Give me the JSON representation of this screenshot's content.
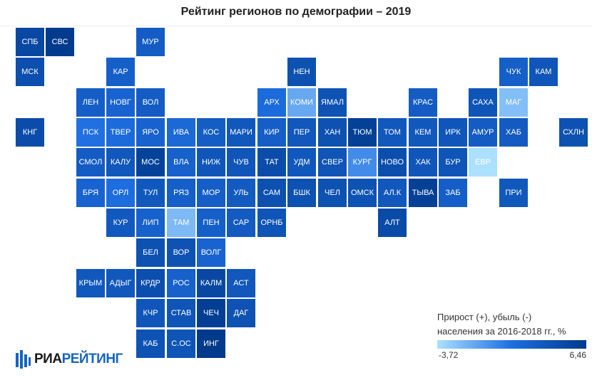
{
  "chart_data": {
    "type": "heatmap",
    "title": "Рейтинг регионов по демографии – 2019",
    "legend": {
      "title_line1": "Прирост (+), убыль (-)",
      "title_line2": "населения за 2016-2018 гг., %",
      "min_label": "-3,72",
      "max_label": "6,46",
      "min": -3.72,
      "max": 6.46,
      "color_low": "#ace0ff",
      "color_high": "#003a8c",
      "placement": "bottom-right"
    },
    "cells": [
      {
        "label": "СПБ",
        "row": 0,
        "col": 0,
        "value": 5.0
      },
      {
        "label": "СВС",
        "row": 0,
        "col": 1,
        "value": 6.3
      },
      {
        "label": "МУР",
        "row": 0,
        "col": 4,
        "value": 2.8
      },
      {
        "label": "МСК",
        "row": 1,
        "col": 0,
        "value": 4.2
      },
      {
        "label": "КАР",
        "row": 1,
        "col": 3,
        "value": 2.5
      },
      {
        "label": "НЕН",
        "row": 1,
        "col": 9,
        "value": 4.0
      },
      {
        "label": "ЧУК",
        "row": 1,
        "col": 16,
        "value": 2.5
      },
      {
        "label": "КАМ",
        "row": 1,
        "col": 17,
        "value": 3.5
      },
      {
        "label": "ЛЕН",
        "row": 2,
        "col": 2,
        "value": 2.6
      },
      {
        "label": "НОВГ",
        "row": 2,
        "col": 3,
        "value": 2.0
      },
      {
        "label": "ВОЛ",
        "row": 2,
        "col": 4,
        "value": 2.8
      },
      {
        "label": "АРХ",
        "row": 2,
        "col": 8,
        "value": 1.2
      },
      {
        "label": "КОМИ",
        "row": 2,
        "col": 9,
        "value": -1.5
      },
      {
        "label": "ЯМАЛ",
        "row": 2,
        "col": 10,
        "value": 3.8
      },
      {
        "label": "КРАС",
        "row": 2,
        "col": 13,
        "value": 2.8
      },
      {
        "label": "САХА",
        "row": 2,
        "col": 15,
        "value": 3.6
      },
      {
        "label": "МАГ",
        "row": 2,
        "col": 16,
        "value": -2.4
      },
      {
        "label": "КНГ",
        "row": 3,
        "col": 0,
        "value": 4.5
      },
      {
        "label": "ПСК",
        "row": 3,
        "col": 2,
        "value": 0.8
      },
      {
        "label": "ТВЕР",
        "row": 3,
        "col": 3,
        "value": 1.2
      },
      {
        "label": "ЯРО",
        "row": 3,
        "col": 4,
        "value": 2.1
      },
      {
        "label": "ИВА",
        "row": 3,
        "col": 5,
        "value": 1.5
      },
      {
        "label": "КОС",
        "row": 3,
        "col": 6,
        "value": 2.7
      },
      {
        "label": "МАРИ",
        "row": 3,
        "col": 7,
        "value": 3.2
      },
      {
        "label": "КИР",
        "row": 3,
        "col": 8,
        "value": 2.6
      },
      {
        "label": "ПЕР",
        "row": 3,
        "col": 9,
        "value": 3.3
      },
      {
        "label": "ХАН",
        "row": 3,
        "col": 10,
        "value": 4.0
      },
      {
        "label": "ТЮМ",
        "row": 3,
        "col": 11,
        "value": 5.8
      },
      {
        "label": "ТОМ",
        "row": 3,
        "col": 12,
        "value": 3.3
      },
      {
        "label": "КЕМ",
        "row": 3,
        "col": 13,
        "value": 3.2
      },
      {
        "label": "ИРК",
        "row": 3,
        "col": 14,
        "value": 3.4
      },
      {
        "label": "АМУР",
        "row": 3,
        "col": 15,
        "value": 2.8
      },
      {
        "label": "ХАБ",
        "row": 3,
        "col": 16,
        "value": 3.0
      },
      {
        "label": "СХЛН",
        "row": 3,
        "col": 18,
        "value": 4.0
      },
      {
        "label": "СМОЛ",
        "row": 4,
        "col": 2,
        "value": 2.8
      },
      {
        "label": "КАЛУ",
        "row": 4,
        "col": 3,
        "value": 3.3
      },
      {
        "label": "МОС",
        "row": 4,
        "col": 4,
        "value": 5.5
      },
      {
        "label": "ВЛА",
        "row": 4,
        "col": 5,
        "value": 2.3
      },
      {
        "label": "НИЖ",
        "row": 4,
        "col": 6,
        "value": 3.4
      },
      {
        "label": "ЧУВ",
        "row": 4,
        "col": 7,
        "value": 3.5
      },
      {
        "label": "ТАТ",
        "row": 4,
        "col": 8,
        "value": 4.5
      },
      {
        "label": "УДМ",
        "row": 4,
        "col": 9,
        "value": 3.2
      },
      {
        "label": "СВЕР",
        "row": 4,
        "col": 10,
        "value": 3.7
      },
      {
        "label": "КУРГ",
        "row": 4,
        "col": 11,
        "value": -0.3
      },
      {
        "label": "НОВО",
        "row": 4,
        "col": 12,
        "value": 4.3
      },
      {
        "label": "ХАК",
        "row": 4,
        "col": 13,
        "value": 3.4
      },
      {
        "label": "БУР",
        "row": 4,
        "col": 14,
        "value": 3.6
      },
      {
        "label": "ЕВР",
        "row": 4,
        "col": 15,
        "value": -3.72
      },
      {
        "label": "БРЯ",
        "row": 5,
        "col": 2,
        "value": 2.0
      },
      {
        "label": "ОРЛ",
        "row": 5,
        "col": 3,
        "value": 1.0
      },
      {
        "label": "ТУЛ",
        "row": 5,
        "col": 4,
        "value": 3.2
      },
      {
        "label": "РЯЗ",
        "row": 5,
        "col": 5,
        "value": 2.5
      },
      {
        "label": "МОР",
        "row": 5,
        "col": 6,
        "value": 2.6
      },
      {
        "label": "УЛЬ",
        "row": 5,
        "col": 7,
        "value": 3.0
      },
      {
        "label": "САМ",
        "row": 5,
        "col": 8,
        "value": 4.1
      },
      {
        "label": "БШК",
        "row": 5,
        "col": 9,
        "value": 4.0
      },
      {
        "label": "ЧЕЛ",
        "row": 5,
        "col": 10,
        "value": 4.0
      },
      {
        "label": "ОМСК",
        "row": 5,
        "col": 11,
        "value": 3.8
      },
      {
        "label": "АЛ.К",
        "row": 5,
        "col": 12,
        "value": 3.3
      },
      {
        "label": "ТЫВА",
        "row": 5,
        "col": 13,
        "value": 5.8
      },
      {
        "label": "ЗАБ",
        "row": 5,
        "col": 14,
        "value": 2.6
      },
      {
        "label": "ПРИ",
        "row": 5,
        "col": 16,
        "value": 3.2
      },
      {
        "label": "КУР",
        "row": 6,
        "col": 3,
        "value": 3.1
      },
      {
        "label": "ЛИП",
        "row": 6,
        "col": 4,
        "value": 2.3
      },
      {
        "label": "ТАМ",
        "row": 6,
        "col": 5,
        "value": -2.2
      },
      {
        "label": "ПЕН",
        "row": 6,
        "col": 6,
        "value": 2.5
      },
      {
        "label": "САР",
        "row": 6,
        "col": 7,
        "value": 3.0
      },
      {
        "label": "ОРНБ",
        "row": 6,
        "col": 8,
        "value": 3.6
      },
      {
        "label": "АЛТ",
        "row": 6,
        "col": 12,
        "value": 4.6
      },
      {
        "label": "БЕЛ",
        "row": 7,
        "col": 4,
        "value": 4.0
      },
      {
        "label": "ВОР",
        "row": 7,
        "col": 5,
        "value": 3.9
      },
      {
        "label": "ВОЛГ",
        "row": 7,
        "col": 6,
        "value": 2.0
      },
      {
        "label": "КРЫМ",
        "row": 8,
        "col": 2,
        "value": 3.2
      },
      {
        "label": "АДЫГ",
        "row": 8,
        "col": 3,
        "value": 3.3
      },
      {
        "label": "КРДР",
        "row": 8,
        "col": 4,
        "value": 4.3
      },
      {
        "label": "РОС",
        "row": 8,
        "col": 5,
        "value": 2.3
      },
      {
        "label": "КАЛМ",
        "row": 8,
        "col": 6,
        "value": 5.0
      },
      {
        "label": "АСТ",
        "row": 8,
        "col": 7,
        "value": 3.3
      },
      {
        "label": "КЧР",
        "row": 9,
        "col": 4,
        "value": 3.4
      },
      {
        "label": "СТАВ",
        "row": 9,
        "col": 5,
        "value": 3.6
      },
      {
        "label": "ЧЕЧ",
        "row": 9,
        "col": 6,
        "value": 6.0
      },
      {
        "label": "ДАГ",
        "row": 9,
        "col": 7,
        "value": 3.9
      },
      {
        "label": "КАБ",
        "row": 10,
        "col": 4,
        "value": 3.8
      },
      {
        "label": "С.ОС",
        "row": 10,
        "col": 5,
        "value": 3.6
      },
      {
        "label": "ИНГ",
        "row": 10,
        "col": 6,
        "value": 6.46
      }
    ]
  },
  "logo": {
    "word1": "РИА",
    "word2": "РЕЙТИНГ"
  },
  "colors": {
    "logo_blue": "#1565c0",
    "logo_dark": "#1a1a1a"
  }
}
